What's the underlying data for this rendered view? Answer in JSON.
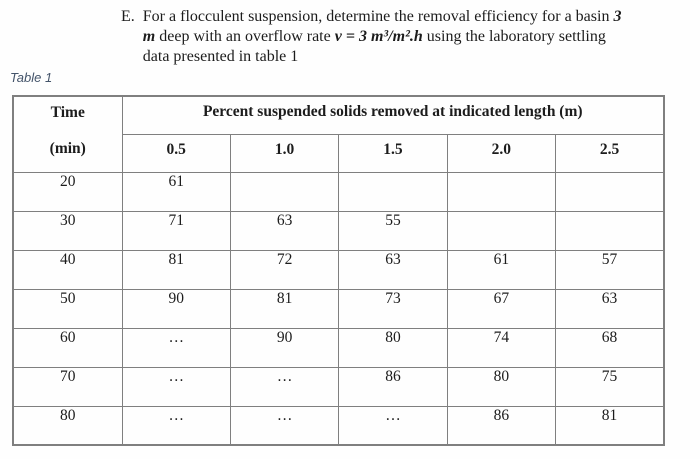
{
  "problem": {
    "label": "E.",
    "lines": [
      {
        "segments": [
          {
            "t": "For a flocculent suspension, determine the removal efficiency for a basin ",
            "b": false
          },
          {
            "t": "3",
            "b": true
          }
        ]
      },
      {
        "segments": [
          {
            "t": "m",
            "b": true
          },
          {
            "t": " deep with an overflow rate ",
            "b": false
          },
          {
            "t": "v = 3 m³/m².h",
            "b": true
          },
          {
            "t": " using the laboratory settling",
            "b": false
          }
        ]
      },
      {
        "segments": [
          {
            "t": "data presented in table 1",
            "b": false
          }
        ]
      }
    ]
  },
  "caption": "Table 1",
  "colors": {
    "caption_text": "#44546A",
    "table_border": "#7f7f7f",
    "body_text": "#1c1c1c"
  },
  "table": {
    "time_header": {
      "line1": "Time",
      "line2": "(min)"
    },
    "span_header": "Percent suspended solids removed at indicated length (m)",
    "length_headers": [
      "0.5",
      "1.0",
      "1.5",
      "2.0",
      "2.5"
    ],
    "rows": [
      {
        "time": "20",
        "values": [
          "61",
          "",
          "",
          "",
          ""
        ]
      },
      {
        "time": "30",
        "values": [
          "71",
          "63",
          "55",
          "",
          ""
        ]
      },
      {
        "time": "40",
        "values": [
          "81",
          "72",
          "63",
          "61",
          "57"
        ]
      },
      {
        "time": "50",
        "values": [
          "90",
          "81",
          "73",
          "67",
          "63"
        ]
      },
      {
        "time": "60",
        "values": [
          "…",
          "90",
          "80",
          "74",
          "68"
        ]
      },
      {
        "time": "70",
        "values": [
          "…",
          "…",
          "86",
          "80",
          "75"
        ]
      },
      {
        "time": "80",
        "values": [
          "…",
          "…",
          "…",
          "86",
          "81"
        ]
      }
    ]
  }
}
